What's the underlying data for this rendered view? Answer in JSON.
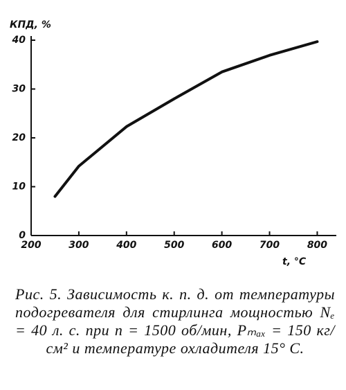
{
  "chart_data": {
    "type": "line",
    "ylabel": "КПД, %",
    "xlabel": "t, °C",
    "x": [
      250,
      300,
      400,
      500,
      600,
      700,
      800
    ],
    "series": [
      {
        "values": [
          8,
          14.2,
          22.3,
          28,
          33.5,
          36.9,
          39.7
        ],
        "color": "#111111"
      }
    ],
    "xlim": [
      200,
      840
    ],
    "xticks": [
      200,
      300,
      400,
      500,
      600,
      700,
      800
    ],
    "ylim": [
      0,
      40
    ],
    "yticks": [
      0,
      10,
      20,
      30,
      40
    ],
    "grid": false,
    "caption": "Рис. 5. Зависимость к. п. д. от температуры подогревателя для стирлинга мощностью Nₑ = 40 л. с. при n = 1500 об/мин, Pₘₐₓ = 150 кг/см² и температуре охладителя 15° С."
  }
}
